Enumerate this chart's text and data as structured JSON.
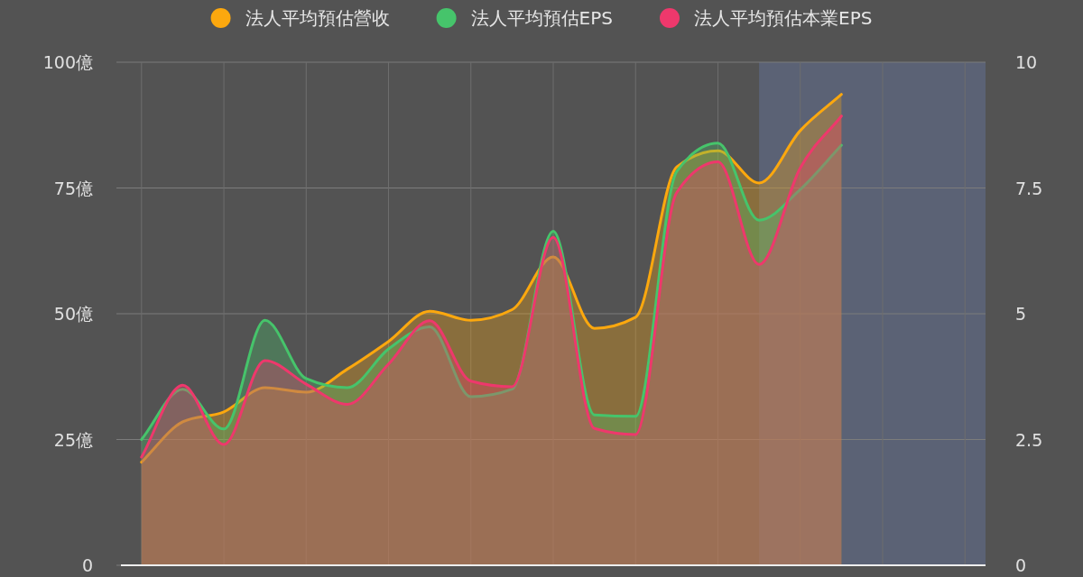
{
  "chart_data": {
    "type": "area",
    "categories": [
      null,
      null,
      null,
      null,
      null,
      null,
      null,
      null,
      null,
      null,
      null,
      null,
      null,
      null,
      null,
      null,
      null,
      null,
      null,
      null,
      null
    ],
    "series": [
      {
        "name": "法人平均預估營收",
        "color": "#fca80e",
        "values": [
          20.5,
          28.5,
          30.5,
          35.3,
          34.4,
          39.0,
          44.5,
          50.5,
          48.7,
          50.8,
          61.3,
          47.1,
          49.3,
          79.2,
          82.4,
          76.0,
          86.4,
          93.6,
          null,
          null,
          null
        ]
      },
      {
        "name": "法人平均預估EPS",
        "color": "#46c46b",
        "axis": "y2",
        "values": [
          2.5,
          3.5,
          2.71,
          4.87,
          3.71,
          3.53,
          4.3,
          4.74,
          3.35,
          3.5,
          6.64,
          2.99,
          2.96,
          7.83,
          8.39,
          6.86,
          7.47,
          8.35,
          null,
          null,
          null
        ]
      },
      {
        "name": "法人平均預估本業EPS",
        "color": "#ee386c",
        "axis": "y2",
        "values": [
          2.15,
          3.58,
          2.4,
          4.07,
          3.6,
          3.2,
          4.0,
          4.86,
          3.66,
          3.55,
          6.52,
          2.72,
          2.6,
          7.41,
          8.02,
          5.98,
          7.9,
          8.93,
          null,
          null,
          null
        ]
      }
    ],
    "ylim": [
      0,
      100
    ],
    "yticks": [
      0,
      {
        "value": 25,
        "label": "25億"
      },
      {
        "value": 50,
        "label": "50億"
      },
      {
        "value": 75,
        "label": "75億"
      },
      {
        "value": 100,
        "label": "100億"
      }
    ],
    "y2lim": [
      0,
      10
    ],
    "y2ticks": [
      0,
      2.5,
      5,
      7.5,
      10
    ],
    "grid": true,
    "legend": "top",
    "line_style": "solid"
  }
}
